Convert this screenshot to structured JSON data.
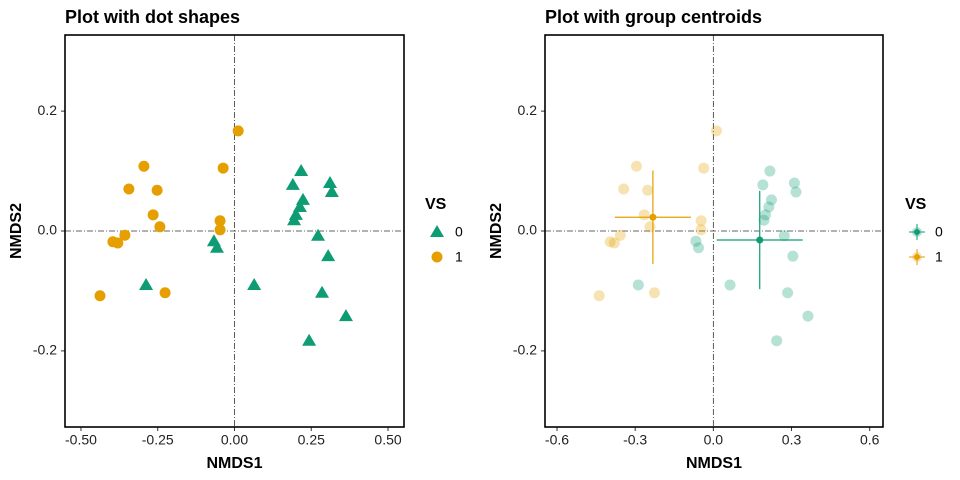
{
  "chart_data": [
    {
      "type": "scatter",
      "title": "Plot with dot shapes",
      "x_label": "NMDS1",
      "y_label": "NMDS2",
      "legend_title": "VS",
      "legend": "right",
      "zero_lines": true,
      "grid": false,
      "xlim": [
        -0.552,
        0.552
      ],
      "ylim": [
        -0.327,
        0.327
      ],
      "xticks": [
        {
          "value": -0.5,
          "label": "-0.50"
        },
        -0.25,
        {
          "value": 0,
          "label": "0.00"
        },
        0.25,
        {
          "value": 0.5,
          "label": "0.50"
        }
      ],
      "yticks": [
        -0.2,
        {
          "value": 0,
          "label": "0.0"
        },
        0.2
      ],
      "series": [
        {
          "name": "0",
          "color": "#0e9c75",
          "marker": "triangle",
          "x": [
            0.217,
            0.19,
            0.311,
            0.317,
            0.223,
            0.213,
            0.2,
            0.194,
            0.272,
            -0.067,
            -0.057,
            0.305,
            -0.288,
            0.064,
            0.285,
            0.363,
            0.243
          ],
          "y": [
            0.1,
            0.077,
            0.08,
            0.065,
            0.052,
            0.04,
            0.027,
            0.018,
            -0.008,
            -0.017,
            -0.028,
            -0.042,
            -0.09,
            -0.09,
            -0.103,
            -0.142,
            -0.183
          ]
        },
        {
          "name": "1",
          "color": "#e69f00",
          "marker": "circle",
          "x": [
            0.012,
            -0.037,
            -0.295,
            -0.344,
            -0.252,
            -0.265,
            -0.243,
            -0.357,
            -0.396,
            -0.38,
            -0.047,
            -0.047,
            -0.226,
            -0.438
          ],
          "y": [
            0.167,
            0.105,
            0.108,
            0.07,
            0.068,
            0.027,
            0.007,
            -0.007,
            -0.018,
            -0.02,
            0.017,
            0.002,
            -0.103,
            -0.108
          ]
        }
      ]
    },
    {
      "type": "scatter",
      "title": "Plot with group centroids",
      "x_label": "NMDS1",
      "y_label": "NMDS2",
      "legend_title": "VS",
      "legend": "right",
      "zero_lines": true,
      "grid": false,
      "point_opacity": 0.3,
      "xlim": [
        -0.646,
        0.651
      ],
      "ylim": [
        -0.327,
        0.327
      ],
      "xticks": [
        -0.6,
        -0.3,
        {
          "value": 0,
          "label": "0.0"
        },
        0.3,
        0.6
      ],
      "yticks": [
        -0.2,
        {
          "value": 0,
          "label": "0.0"
        },
        0.2
      ],
      "series": [
        {
          "name": "0",
          "color": "#0e9c75",
          "marker": "circle",
          "x": [
            0.217,
            0.19,
            0.311,
            0.317,
            0.223,
            0.213,
            0.2,
            0.194,
            0.272,
            -0.067,
            -0.057,
            0.305,
            -0.288,
            0.064,
            0.285,
            0.363,
            0.243
          ],
          "y": [
            0.1,
            0.077,
            0.08,
            0.065,
            0.052,
            0.04,
            0.027,
            0.018,
            -0.008,
            -0.017,
            -0.028,
            -0.042,
            -0.09,
            -0.09,
            -0.103,
            -0.142,
            -0.183
          ],
          "centroid": {
            "x": 0.178,
            "y": -0.015,
            "xerr": 0.165,
            "yerr": 0.082
          }
        },
        {
          "name": "1",
          "color": "#e69f00",
          "marker": "circle",
          "x": [
            0.012,
            -0.037,
            -0.295,
            -0.344,
            -0.252,
            -0.265,
            -0.243,
            -0.357,
            -0.396,
            -0.38,
            -0.047,
            -0.047,
            -0.226,
            -0.438
          ],
          "y": [
            0.167,
            0.105,
            0.108,
            0.07,
            0.068,
            0.027,
            0.007,
            -0.007,
            -0.018,
            -0.02,
            0.017,
            0.002,
            -0.103,
            -0.108
          ],
          "centroid": {
            "x": -0.232,
            "y": 0.023,
            "xerr": 0.146,
            "yerr": 0.078
          }
        }
      ]
    }
  ]
}
